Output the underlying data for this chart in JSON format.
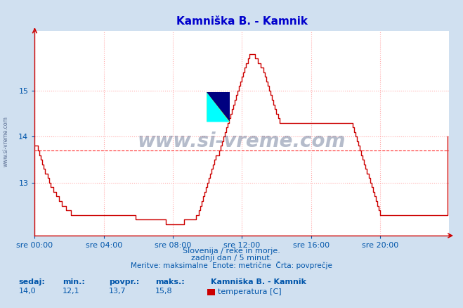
{
  "title": "Kamniška B. - Kamnik",
  "title_color": "#0000cc",
  "bg_color": "#d0e0f0",
  "plot_bg_color": "#ffffff",
  "line_color": "#cc0000",
  "grid_color": "#ffaaaa",
  "avg_line_color": "#ff0000",
  "avg_value": 13.7,
  "ylim": [
    11.85,
    16.3
  ],
  "yticks": [
    13,
    14,
    15
  ],
  "tick_color": "#0055aa",
  "spine_color": "#cc0000",
  "watermark_text": "www.si-vreme.com",
  "watermark_color": "#1a3060",
  "watermark_alpha": 0.32,
  "footer_line1": "Slovenija / reke in morje.",
  "footer_line2": "zadnji dan / 5 minut.",
  "footer_line3": "Meritve: maksimalne  Enote: metrične  Črta: povprečje",
  "footer_color": "#0055aa",
  "stat_labels": [
    "sedaj:",
    "min.:",
    "povpr.:",
    "maks.:"
  ],
  "stat_values": [
    "14,0",
    "12,1",
    "13,7",
    "15,8"
  ],
  "legend_station": "Kamniška B. - Kamnik",
  "legend_label": "temperatura [C]",
  "legend_color": "#cc0000",
  "x_tick_labels": [
    "sre 00:00",
    "sre 04:00",
    "sre 08:00",
    "sre 12:00",
    "sre 16:00",
    "sre 20:00"
  ],
  "x_tick_positions": [
    0,
    48,
    96,
    144,
    192,
    240
  ],
  "total_points": 288,
  "temperature_data": [
    13.8,
    13.8,
    13.7,
    13.6,
    13.5,
    13.4,
    13.3,
    13.2,
    13.2,
    13.1,
    13.0,
    12.9,
    12.9,
    12.8,
    12.8,
    12.7,
    12.7,
    12.6,
    12.6,
    12.5,
    12.5,
    12.5,
    12.4,
    12.4,
    12.4,
    12.3,
    12.3,
    12.3,
    12.3,
    12.3,
    12.3,
    12.3,
    12.3,
    12.3,
    12.3,
    12.3,
    12.3,
    12.3,
    12.3,
    12.3,
    12.3,
    12.3,
    12.3,
    12.3,
    12.3,
    12.3,
    12.3,
    12.3,
    12.3,
    12.3,
    12.3,
    12.3,
    12.3,
    12.3,
    12.3,
    12.3,
    12.3,
    12.3,
    12.3,
    12.3,
    12.3,
    12.3,
    12.3,
    12.3,
    12.3,
    12.3,
    12.3,
    12.3,
    12.3,
    12.3,
    12.2,
    12.2,
    12.2,
    12.2,
    12.2,
    12.2,
    12.2,
    12.2,
    12.2,
    12.2,
    12.2,
    12.2,
    12.2,
    12.2,
    12.2,
    12.2,
    12.2,
    12.2,
    12.2,
    12.2,
    12.2,
    12.1,
    12.1,
    12.1,
    12.1,
    12.1,
    12.1,
    12.1,
    12.1,
    12.1,
    12.1,
    12.1,
    12.1,
    12.1,
    12.2,
    12.2,
    12.2,
    12.2,
    12.2,
    12.2,
    12.2,
    12.2,
    12.3,
    12.3,
    12.4,
    12.5,
    12.6,
    12.7,
    12.8,
    12.9,
    13.0,
    13.1,
    13.2,
    13.3,
    13.4,
    13.5,
    13.6,
    13.6,
    13.7,
    13.8,
    13.9,
    14.0,
    14.1,
    14.2,
    14.3,
    14.4,
    14.5,
    14.6,
    14.7,
    14.8,
    14.9,
    15.0,
    15.1,
    15.2,
    15.3,
    15.4,
    15.5,
    15.6,
    15.7,
    15.8,
    15.8,
    15.8,
    15.8,
    15.7,
    15.7,
    15.6,
    15.6,
    15.5,
    15.5,
    15.4,
    15.3,
    15.2,
    15.1,
    15.0,
    14.9,
    14.8,
    14.7,
    14.6,
    14.5,
    14.4,
    14.3,
    14.3,
    14.3,
    14.3,
    14.3,
    14.3,
    14.3,
    14.3,
    14.3,
    14.3,
    14.3,
    14.3,
    14.3,
    14.3,
    14.3,
    14.3,
    14.3,
    14.3,
    14.3,
    14.3,
    14.3,
    14.3,
    14.3,
    14.3,
    14.3,
    14.3,
    14.3,
    14.3,
    14.3,
    14.3,
    14.3,
    14.3,
    14.3,
    14.3,
    14.3,
    14.3,
    14.3,
    14.3,
    14.3,
    14.3,
    14.3,
    14.3,
    14.3,
    14.3,
    14.3,
    14.3,
    14.3,
    14.3,
    14.3,
    14.3,
    14.3,
    14.2,
    14.1,
    14.0,
    13.9,
    13.8,
    13.7,
    13.6,
    13.5,
    13.4,
    13.3,
    13.2,
    13.1,
    13.0,
    12.9,
    12.8,
    12.7,
    12.6,
    12.5,
    12.4,
    12.3,
    12.3,
    12.3,
    12.3,
    12.3,
    12.3,
    12.3,
    12.3,
    12.3,
    12.3,
    12.3,
    12.3,
    12.3,
    12.3,
    12.3,
    12.3,
    12.3,
    12.3,
    12.3,
    12.3,
    12.3,
    12.3,
    12.3,
    12.3,
    12.3,
    12.3,
    12.3,
    12.3,
    12.3,
    12.3,
    12.3,
    12.3,
    12.3,
    12.3,
    12.3,
    12.3,
    12.3,
    12.3,
    12.3,
    12.3,
    12.3,
    12.3,
    12.3,
    12.3,
    12.3,
    12.3,
    12.3,
    14.0
  ]
}
